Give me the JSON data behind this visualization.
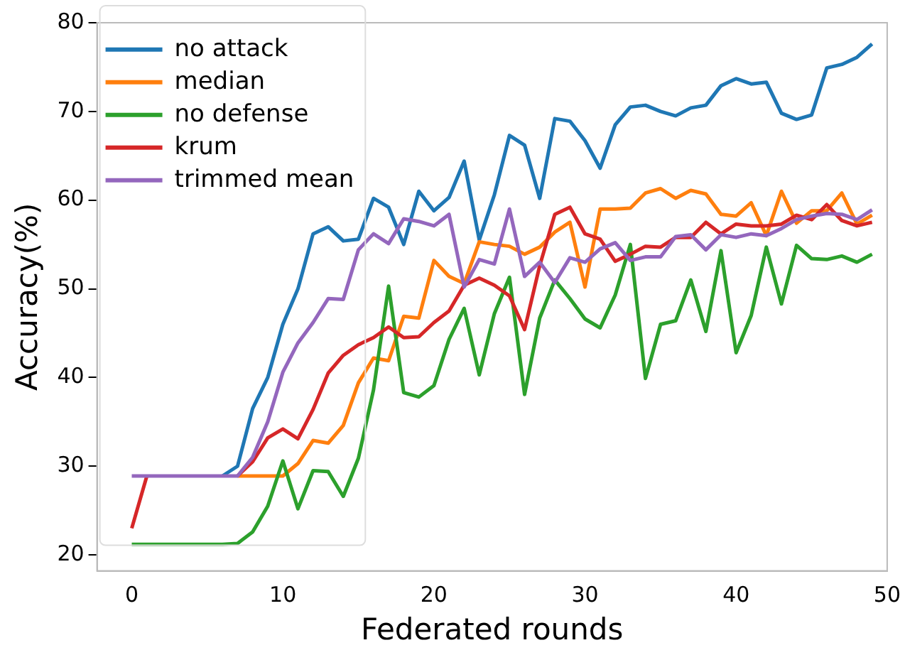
{
  "chart_data": {
    "type": "line",
    "xlabel": "Federated rounds",
    "ylabel": "Accuracy(%)",
    "x": [
      0,
      1,
      2,
      3,
      4,
      5,
      6,
      7,
      8,
      9,
      10,
      11,
      12,
      13,
      14,
      15,
      16,
      17,
      18,
      19,
      20,
      21,
      22,
      23,
      24,
      25,
      26,
      27,
      28,
      29,
      30,
      31,
      32,
      33,
      34,
      35,
      36,
      37,
      38,
      39,
      40,
      41,
      42,
      43,
      44,
      45,
      46,
      47,
      48,
      49
    ],
    "xlim": [
      -2.3,
      50
    ],
    "xticks": [
      0,
      10,
      20,
      30,
      40,
      50
    ],
    "ylim": [
      18.2,
      80
    ],
    "yticks": [
      20,
      30,
      40,
      50,
      60,
      70,
      80
    ],
    "legend": "top left",
    "grid": false,
    "marker": "none",
    "line_style": "solid",
    "series": [
      {
        "name": "no attack",
        "color": "#1f77b4",
        "values": [
          null,
          null,
          null,
          null,
          null,
          null,
          28.9,
          30,
          36.5,
          40,
          46,
          50,
          56.2,
          57,
          55.4,
          55.6,
          60.2,
          59.2,
          55,
          61,
          58.8,
          60.3,
          64.4,
          55.5,
          60.6,
          67.3,
          66.2,
          60.2,
          69.2,
          68.9,
          66.7,
          63.6,
          68.5,
          70.5,
          70.7,
          70,
          69.5,
          70.4,
          70.7,
          72.9,
          73.7,
          73.1,
          73.3,
          69.8,
          69.1,
          69.6,
          74.9,
          75.3,
          76.1,
          77.6
        ]
      },
      {
        "name": "median",
        "color": "#ff7f0e",
        "values": [
          null,
          null,
          null,
          null,
          null,
          null,
          null,
          28.9,
          28.9,
          28.9,
          28.9,
          30.3,
          32.9,
          32.6,
          34.6,
          39.4,
          42.2,
          41.9,
          46.9,
          46.7,
          53.2,
          51.4,
          50.6,
          55.3,
          55,
          54.8,
          53.9,
          54.7,
          56.4,
          57.5,
          50.2,
          59,
          59,
          59.1,
          60.8,
          61.3,
          60.2,
          61.1,
          60.7,
          58.4,
          58.2,
          59.7,
          56,
          61,
          57.4,
          58.8,
          58.8,
          60.8,
          57.3,
          58.3
        ]
      },
      {
        "name": "no defense",
        "color": "#2ca02c",
        "values": [
          21.2,
          21.2,
          21.2,
          21.2,
          21.2,
          21.2,
          21.2,
          21.3,
          22.6,
          25.5,
          30.6,
          25.2,
          29.5,
          29.4,
          26.6,
          30.9,
          38.6,
          50.3,
          38.3,
          37.8,
          39.1,
          44.3,
          47.8,
          40.3,
          47.2,
          51.3,
          38.1,
          46.7,
          51,
          48.9,
          46.6,
          45.6,
          49.3,
          55,
          39.9,
          46,
          46.4,
          51,
          45.2,
          54.3,
          42.8,
          47,
          54.7,
          48.3,
          54.9,
          53.4,
          53.3,
          53.7,
          53,
          53.9
        ]
      },
      {
        "name": "krum",
        "color": "#d62728",
        "values": [
          23,
          28.9,
          null,
          null,
          null,
          null,
          null,
          28.9,
          30.5,
          33.2,
          34.2,
          33.1,
          36.4,
          40.5,
          42.5,
          43.7,
          44.5,
          45.7,
          44.5,
          44.6,
          46.2,
          47.5,
          50.4,
          51.2,
          50.4,
          49.2,
          45.4,
          52.6,
          58.4,
          59.2,
          56.2,
          55.6,
          53.1,
          53.9,
          54.8,
          54.7,
          55.8,
          55.8,
          57.5,
          56.2,
          57.3,
          57.1,
          57.1,
          57.3,
          58.3,
          57.8,
          59.5,
          57.7,
          57.1,
          57.5
        ]
      },
      {
        "name": "trimmed mean",
        "color": "#9467bd",
        "values": [
          28.9,
          28.9,
          28.9,
          28.9,
          28.9,
          28.9,
          28.9,
          28.9,
          31,
          35,
          40.6,
          43.9,
          46.2,
          48.9,
          48.8,
          54.4,
          56.2,
          55.1,
          57.9,
          57.6,
          57.1,
          58.4,
          50.2,
          53.3,
          52.8,
          59,
          51.4,
          53,
          50.7,
          53.5,
          53,
          54.5,
          55.2,
          53.2,
          53.6,
          53.6,
          55.9,
          56.1,
          54.4,
          56.1,
          55.8,
          56.2,
          56,
          56.8,
          57.8,
          58.2,
          58.5,
          58.4,
          57.8,
          58.9
        ]
      }
    ]
  }
}
